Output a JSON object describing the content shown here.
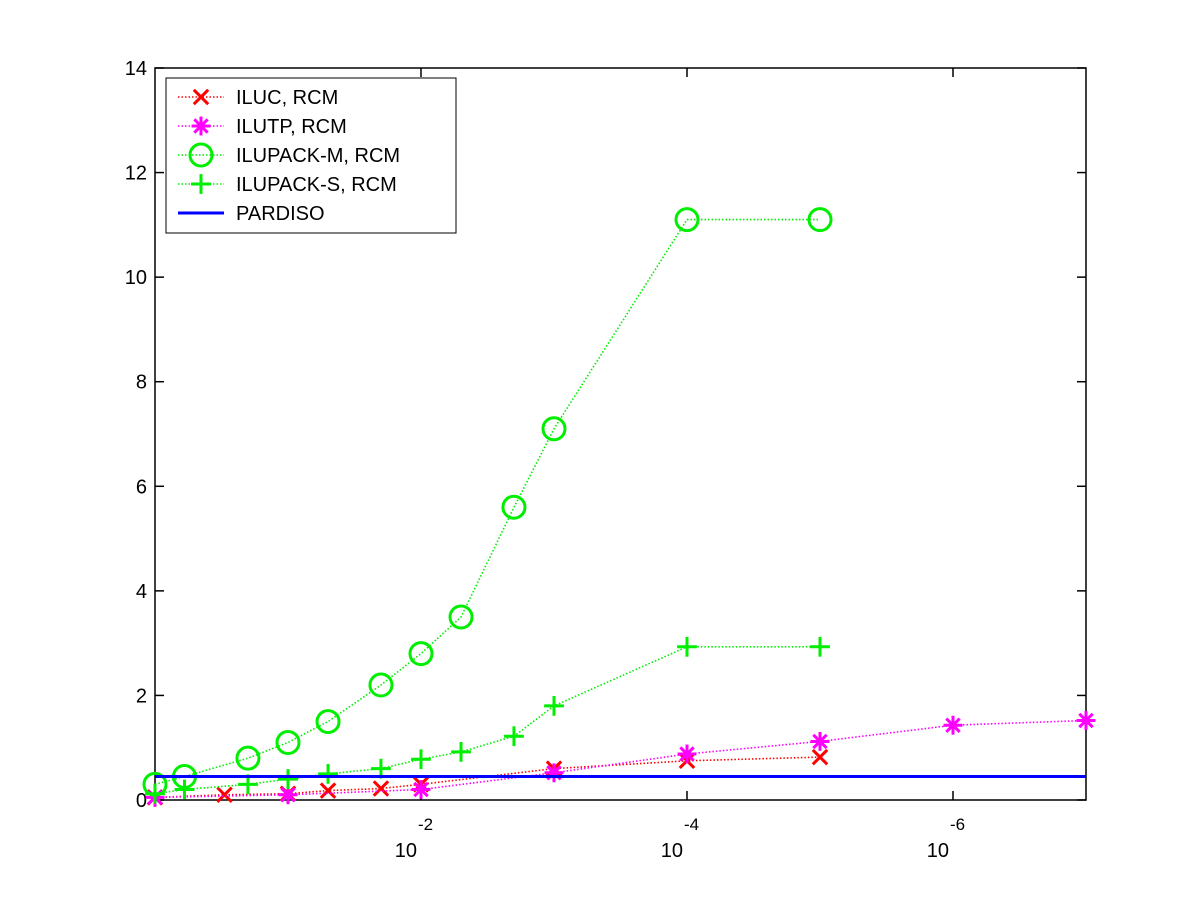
{
  "chart_data": {
    "type": "line",
    "x_scale": "log-reversed",
    "xlim": [
      1,
      1e-07
    ],
    "ylim": [
      0,
      14
    ],
    "yticks": [
      0,
      2,
      4,
      6,
      8,
      10,
      12,
      14
    ],
    "xticks": [
      {
        "base": "10",
        "exp": "-2",
        "value": 0.01
      },
      {
        "base": "10",
        "exp": "-4",
        "value": 0.0001
      },
      {
        "base": "10",
        "exp": "-6",
        "value": 1e-06
      }
    ],
    "grid": false,
    "legend_position": "top-left",
    "series": [
      {
        "name": "ILUC, RCM",
        "color": "#ff0000",
        "marker": "x",
        "style": "dotted",
        "x": [
          1,
          0.3,
          0.1,
          0.05,
          0.02,
          0.01,
          0.001,
          0.0001,
          1e-05
        ],
        "y": [
          0.05,
          0.1,
          0.12,
          0.18,
          0.22,
          0.3,
          0.6,
          0.75,
          0.82
        ]
      },
      {
        "name": "ILUTP, RCM",
        "color": "#ff00ff",
        "marker": "*",
        "style": "dotted",
        "x": [
          1,
          0.1,
          0.01,
          0.001,
          0.0001,
          1e-05,
          1e-06,
          1e-07
        ],
        "y": [
          0.05,
          0.1,
          0.2,
          0.52,
          0.88,
          1.12,
          1.43,
          1.52
        ]
      },
      {
        "name": "ILUPACK-M, RCM",
        "color": "#00ee00",
        "marker": "o",
        "style": "dotted",
        "x": [
          1,
          0.6,
          0.2,
          0.1,
          0.05,
          0.02,
          0.01,
          0.005,
          0.002,
          0.001,
          0.0001,
          1e-05
        ],
        "y": [
          0.3,
          0.45,
          0.8,
          1.1,
          1.5,
          2.2,
          2.8,
          3.5,
          5.6,
          7.1,
          11.1,
          11.1
        ]
      },
      {
        "name": "ILUPACK-S, RCM",
        "color": "#00ee00",
        "marker": "+",
        "style": "dotted",
        "x": [
          1,
          0.6,
          0.2,
          0.1,
          0.05,
          0.02,
          0.01,
          0.005,
          0.002,
          0.001,
          0.0001,
          1e-05
        ],
        "y": [
          0.12,
          0.2,
          0.3,
          0.4,
          0.5,
          0.6,
          0.78,
          0.92,
          1.22,
          1.8,
          2.93,
          2.93
        ]
      },
      {
        "name": "PARDISO",
        "color": "#0000ff",
        "marker": "none",
        "style": "solid",
        "x": [
          1,
          1e-07
        ],
        "y": [
          0.45,
          0.45
        ]
      }
    ]
  }
}
